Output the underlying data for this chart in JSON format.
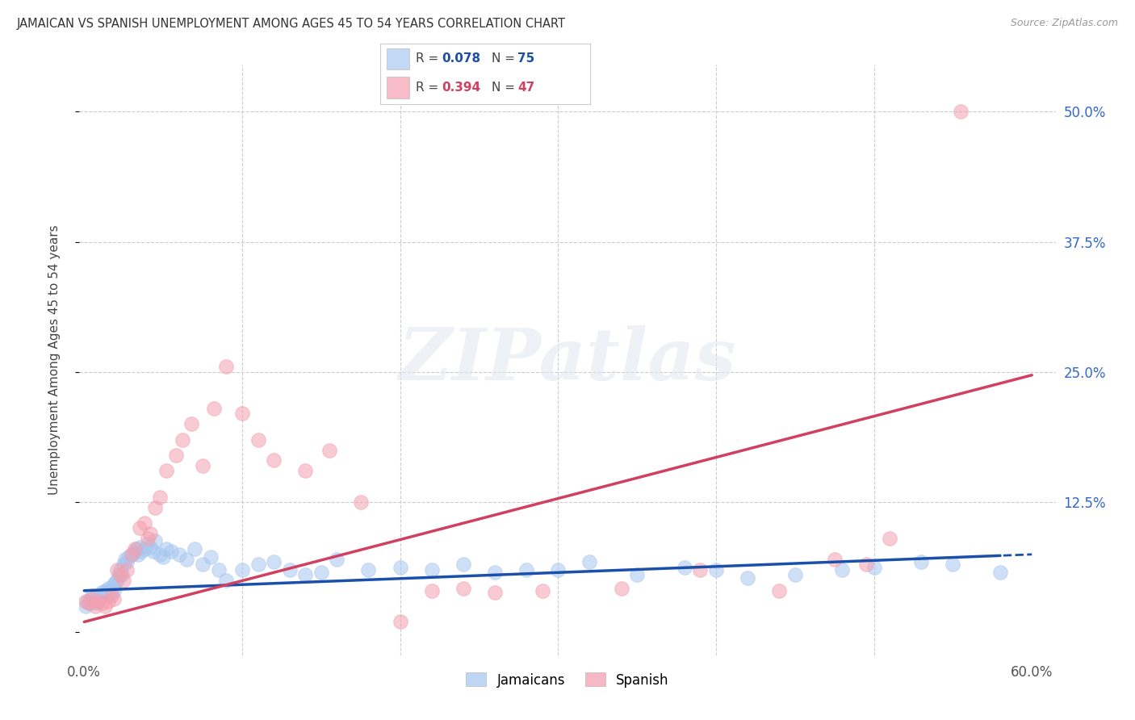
{
  "title": "JAMAICAN VS SPANISH UNEMPLOYMENT AMONG AGES 45 TO 54 YEARS CORRELATION CHART",
  "source": "Source: ZipAtlas.com",
  "ylabel": "Unemployment Among Ages 45 to 54 years",
  "xlim": [
    -0.003,
    0.615
  ],
  "ylim": [
    -0.022,
    0.545
  ],
  "ytick_positions": [
    0.0,
    0.125,
    0.25,
    0.375,
    0.5
  ],
  "ytick_labels_right": [
    "",
    "12.5%",
    "25.0%",
    "37.5%",
    "50.0%"
  ],
  "xtick_positions": [
    0.0,
    0.1,
    0.2,
    0.3,
    0.4,
    0.5,
    0.6
  ],
  "xtick_labels": [
    "0.0%",
    "",
    "",
    "",
    "",
    "",
    "60.0%"
  ],
  "grid_color": "#cccccc",
  "bg_color": "#ffffff",
  "jam_color": "#a8c8f0",
  "spa_color": "#f4a0b0",
  "reg_jam_color": "#1a4faa",
  "reg_spa_color": "#d04060",
  "watermark": "ZIPatlas",
  "jam_label_color": "#1a4faa",
  "spa_label_color": "#d04060",
  "right_tick_color": "#3366cc",
  "jamaicans_R": "0.078",
  "jamaicans_N": "75",
  "spanish_R": "0.394",
  "spanish_N": "47",
  "jam_x": [
    0.001,
    0.002,
    0.003,
    0.004,
    0.005,
    0.006,
    0.007,
    0.008,
    0.009,
    0.01,
    0.011,
    0.012,
    0.013,
    0.014,
    0.015,
    0.016,
    0.017,
    0.018,
    0.019,
    0.02,
    0.021,
    0.022,
    0.023,
    0.024,
    0.025,
    0.026,
    0.027,
    0.028,
    0.03,
    0.032,
    0.033,
    0.034,
    0.035,
    0.036,
    0.038,
    0.04,
    0.042,
    0.044,
    0.045,
    0.048,
    0.05,
    0.052,
    0.055,
    0.06,
    0.065,
    0.07,
    0.075,
    0.08,
    0.085,
    0.09,
    0.1,
    0.11,
    0.12,
    0.13,
    0.14,
    0.15,
    0.16,
    0.18,
    0.2,
    0.22,
    0.24,
    0.26,
    0.28,
    0.3,
    0.32,
    0.35,
    0.38,
    0.4,
    0.42,
    0.45,
    0.48,
    0.5,
    0.53,
    0.55,
    0.58
  ],
  "jam_y": [
    0.025,
    0.03,
    0.028,
    0.032,
    0.035,
    0.03,
    0.028,
    0.033,
    0.031,
    0.035,
    0.038,
    0.036,
    0.04,
    0.038,
    0.042,
    0.04,
    0.038,
    0.045,
    0.04,
    0.048,
    0.05,
    0.055,
    0.06,
    0.055,
    0.065,
    0.07,
    0.068,
    0.072,
    0.075,
    0.078,
    0.08,
    0.075,
    0.082,
    0.078,
    0.08,
    0.085,
    0.082,
    0.078,
    0.088,
    0.075,
    0.072,
    0.08,
    0.078,
    0.075,
    0.07,
    0.08,
    0.065,
    0.072,
    0.06,
    0.05,
    0.06,
    0.065,
    0.068,
    0.06,
    0.055,
    0.058,
    0.07,
    0.06,
    0.062,
    0.06,
    0.065,
    0.058,
    0.06,
    0.06,
    0.068,
    0.055,
    0.062,
    0.06,
    0.052,
    0.055,
    0.06,
    0.062,
    0.068,
    0.065,
    0.058
  ],
  "spa_x": [
    0.001,
    0.003,
    0.005,
    0.007,
    0.009,
    0.011,
    0.013,
    0.015,
    0.017,
    0.019,
    0.021,
    0.023,
    0.025,
    0.027,
    0.03,
    0.032,
    0.035,
    0.038,
    0.04,
    0.042,
    0.045,
    0.048,
    0.052,
    0.058,
    0.062,
    0.068,
    0.075,
    0.082,
    0.09,
    0.1,
    0.11,
    0.12,
    0.14,
    0.155,
    0.175,
    0.2,
    0.22,
    0.24,
    0.26,
    0.29,
    0.34,
    0.39,
    0.44,
    0.475,
    0.51,
    0.555,
    0.495
  ],
  "spa_y": [
    0.03,
    0.028,
    0.032,
    0.025,
    0.03,
    0.028,
    0.025,
    0.03,
    0.035,
    0.032,
    0.06,
    0.055,
    0.05,
    0.06,
    0.075,
    0.08,
    0.1,
    0.105,
    0.09,
    0.095,
    0.12,
    0.13,
    0.155,
    0.17,
    0.185,
    0.2,
    0.16,
    0.215,
    0.255,
    0.21,
    0.185,
    0.165,
    0.155,
    0.175,
    0.125,
    0.01,
    0.04,
    0.042,
    0.038,
    0.04,
    0.042,
    0.06,
    0.04,
    0.07,
    0.09,
    0.5,
    0.065
  ]
}
